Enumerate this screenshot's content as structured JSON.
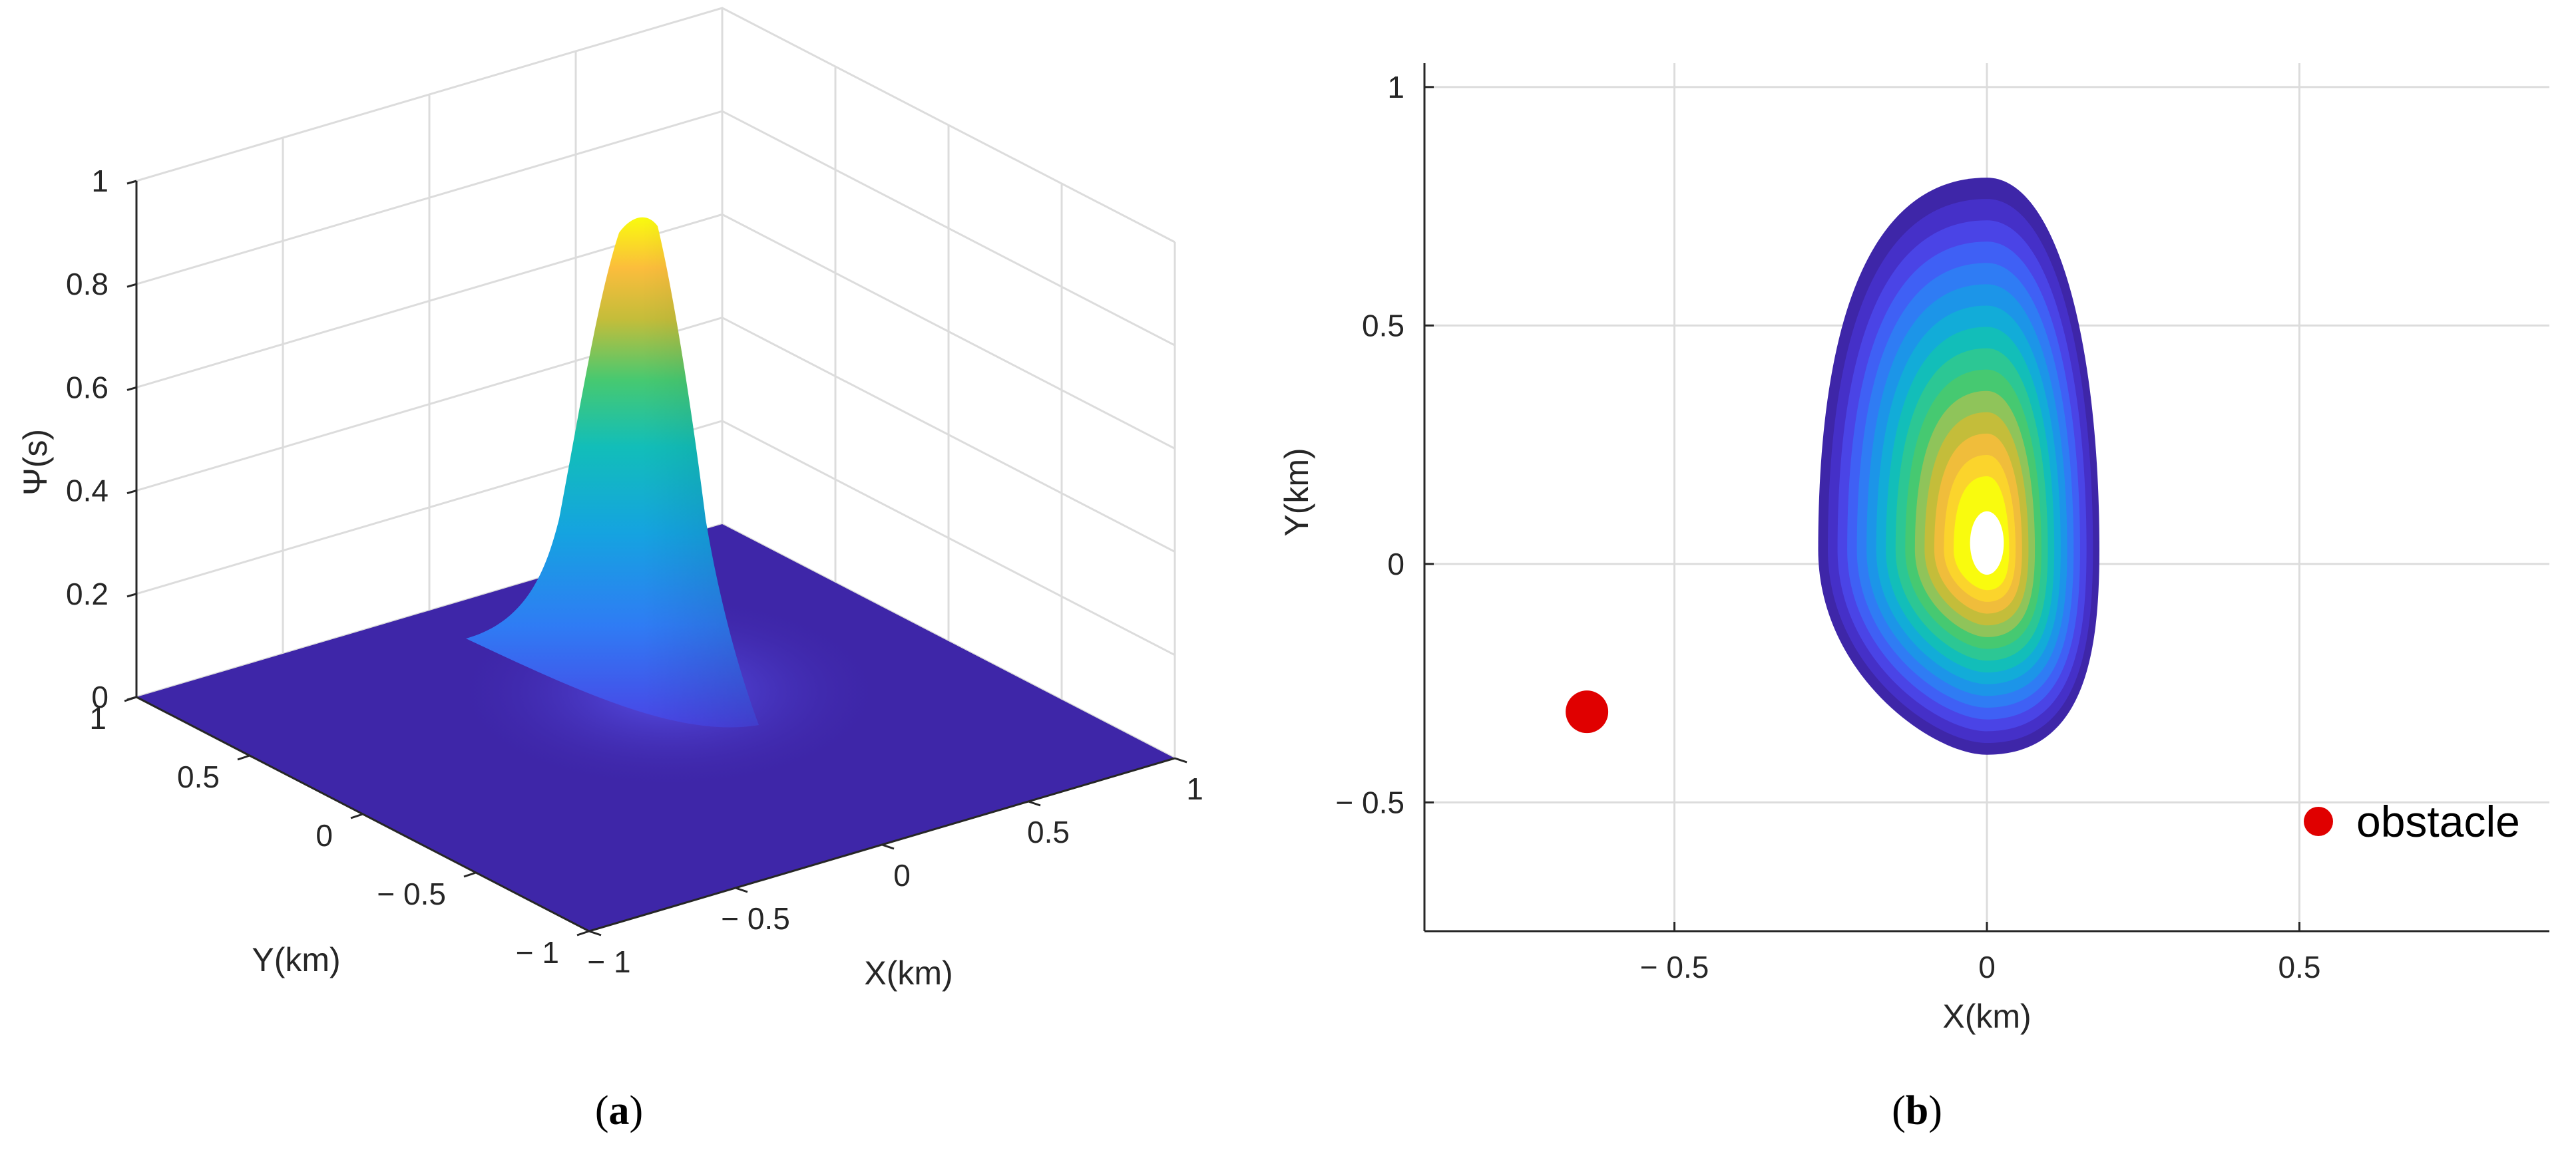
{
  "chart_data": [
    {
      "panel": "(a)",
      "type": "surface3d",
      "zlabel": "Ψ(s)",
      "xlabel": "X(km)",
      "ylabel": "Y(km)",
      "xlim": [
        -1,
        1
      ],
      "ylim": [
        -1,
        1
      ],
      "zlim": [
        0,
        1
      ],
      "xticks": [
        "− 1",
        "− 0.5",
        "0",
        "0.5",
        "1"
      ],
      "yticks": [
        "− 1",
        "− 0.5",
        "0",
        "0.5",
        "1"
      ],
      "zticks": [
        "0",
        "0.2",
        "0.4",
        "0.6",
        "0.8",
        "1"
      ],
      "grid": true,
      "peak": {
        "x": 0,
        "y": 0.1,
        "z": 0.95
      },
      "colormap": "parula"
    },
    {
      "panel": "(b)",
      "type": "heatmap",
      "xlabel": "X(km)",
      "ylabel": "Y(km)",
      "xlim": [
        -0.9,
        0.9
      ],
      "ylim": [
        -0.77,
        1.05
      ],
      "xticks": [
        {
          "v": -0.5,
          "label": "− 0.5"
        },
        {
          "v": 0,
          "label": "0"
        },
        {
          "v": 0.5,
          "label": "0.5"
        }
      ],
      "yticks": [
        {
          "v": -0.5,
          "label": "− 0.5"
        },
        {
          "v": 0,
          "label": "0"
        },
        {
          "v": 0.5,
          "label": "0.5"
        },
        {
          "v": 1,
          "label": "1"
        }
      ],
      "grid": true,
      "contour_region": {
        "x_range": [
          -0.27,
          0.18
        ],
        "y_range": [
          -0.4,
          0.81
        ],
        "peak": {
          "x": 0,
          "y": 0.03
        }
      },
      "obstacles": [
        {
          "x": -0.64,
          "y": -0.31
        }
      ],
      "legend": {
        "label": "obstacle",
        "position": "bottom-right"
      },
      "colormap": "parula"
    }
  ],
  "captions": {
    "a": "a",
    "b": "b"
  },
  "colors": {
    "obstacle": "#e00000",
    "floor": "#3e26a8",
    "peak": "#f9fb0e",
    "grid": "#dcdcdc"
  }
}
